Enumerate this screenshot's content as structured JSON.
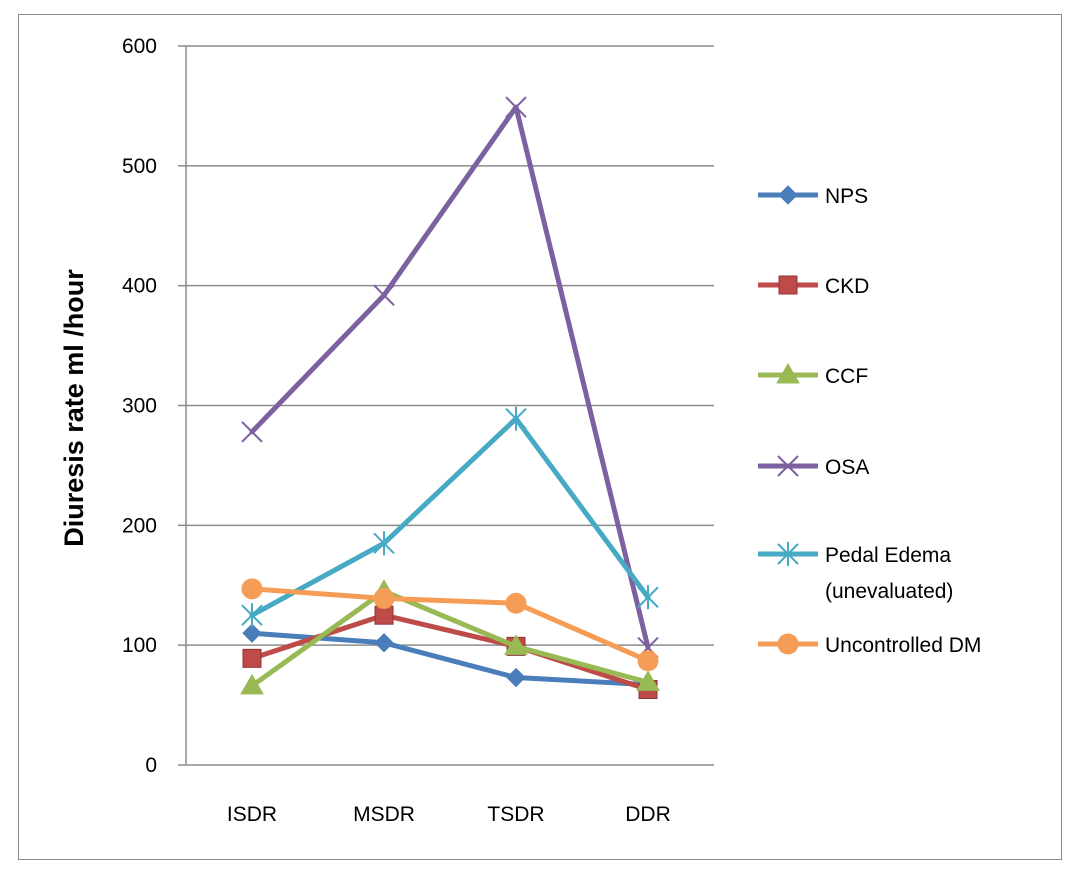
{
  "chart_data": {
    "type": "line",
    "title": "",
    "xlabel": "",
    "ylabel": "Diuresis rate ml /hour",
    "categories": [
      "ISDR",
      "MSDR",
      "TSDR",
      "DDR"
    ],
    "ylim": [
      0,
      600
    ],
    "yticks": [
      0,
      100,
      200,
      300,
      400,
      500,
      600
    ],
    "grid": true,
    "legend_position": "right",
    "series": [
      {
        "name": "NPS",
        "label_lines": [
          "NPS"
        ],
        "values": [
          110,
          102,
          73,
          67
        ],
        "color": "#4A7EBB",
        "marker": "diamond"
      },
      {
        "name": "CKD",
        "label_lines": [
          "CKD"
        ],
        "values": [
          89,
          125,
          99,
          63
        ],
        "color": "#BE4B48",
        "marker": "square"
      },
      {
        "name": "CCF",
        "label_lines": [
          "CCF"
        ],
        "values": [
          66,
          145,
          99,
          69
        ],
        "color": "#98B954",
        "marker": "triangle"
      },
      {
        "name": "OSA",
        "label_lines": [
          "OSA"
        ],
        "values": [
          278,
          392,
          549,
          98
        ],
        "color": "#7D60A0",
        "marker": "x"
      },
      {
        "name": "Pedal Edema (unevaluated)",
        "label_lines": [
          "Pedal Edema",
          "(unevaluated)"
        ],
        "values": [
          125,
          185,
          289,
          140
        ],
        "color": "#46AAC5",
        "marker": "star"
      },
      {
        "name": "Uncontrolled DM",
        "label_lines": [
          "Uncontrolled DM"
        ],
        "values": [
          147,
          139,
          135,
          87
        ],
        "color": "#F59D56",
        "marker": "circle"
      }
    ]
  }
}
